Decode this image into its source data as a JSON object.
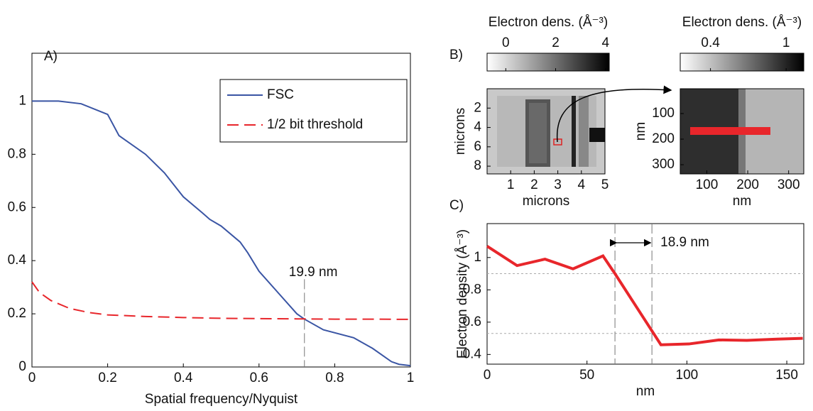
{
  "chart_data": [
    {
      "type": "line",
      "panel_label": "A)",
      "xlabel": "Spatial frequency/Nyquist",
      "xlim": [
        0,
        1
      ],
      "ylim": [
        0,
        1.18
      ],
      "xticks": [
        0,
        0.2,
        0.4,
        0.6,
        0.8,
        1
      ],
      "yticks": [
        0,
        0.2,
        0.4,
        0.6,
        0.8,
        1
      ],
      "legend": "upper right",
      "series": [
        {
          "name": "FSC",
          "color": "#3a55a4",
          "dash": false,
          "x": [
            0,
            0.07,
            0.13,
            0.2,
            0.23,
            0.3,
            0.35,
            0.4,
            0.45,
            0.47,
            0.5,
            0.55,
            0.57,
            0.6,
            0.65,
            0.7,
            0.72,
            0.77,
            0.85,
            0.9,
            0.95,
            0.97,
            1
          ],
          "values": [
            1,
            1,
            0.99,
            0.95,
            0.87,
            0.8,
            0.73,
            0.64,
            0.58,
            0.555,
            0.53,
            0.47,
            0.43,
            0.36,
            0.28,
            0.2,
            0.18,
            0.14,
            0.11,
            0.07,
            0.02,
            0.01,
            0.005
          ]
        },
        {
          "name": "1/2 bit threshold",
          "color": "#e8262b",
          "dash": true,
          "x": [
            0,
            0.02,
            0.05,
            0.1,
            0.15,
            0.2,
            0.3,
            0.4,
            0.5,
            0.6,
            0.7,
            0.8,
            0.9,
            1
          ],
          "values": [
            0.32,
            0.28,
            0.25,
            0.22,
            0.205,
            0.196,
            0.19,
            0.186,
            0.183,
            0.182,
            0.181,
            0.18,
            0.18,
            0.179
          ]
        }
      ],
      "vlines": [
        0.72
      ],
      "annotations": [
        "19.9 nm"
      ]
    },
    {
      "type": "image",
      "panel_label": "B)",
      "xlabel": "microns",
      "ylabel": "microns",
      "xlim": [
        0,
        5
      ],
      "ylim": [
        8.8,
        0
      ],
      "xticks": [
        1,
        2,
        3,
        4,
        5
      ],
      "yticks": [
        2,
        4,
        6,
        8
      ],
      "colorbar_label": "Electron dens. (Å⁻³)",
      "clim": [
        -0.75,
        4.15
      ],
      "cticks": [
        0,
        2,
        4
      ]
    },
    {
      "type": "image",
      "xlabel": "nm",
      "ylabel": "nm",
      "xlim": [
        35,
        337
      ],
      "ylim": [
        336,
        3
      ],
      "xticks": [
        100,
        200,
        300
      ],
      "yticks": [
        100,
        200,
        300
      ],
      "colorbar_label": "Electron dens. (Å⁻³)",
      "clim": [
        0.16,
        1.14
      ],
      "cticks": [
        0.4,
        1
      ]
    },
    {
      "type": "line",
      "panel_label": "C)",
      "xlabel": "nm",
      "ylabel": "Electron density (Å⁻³)",
      "xlim": [
        0,
        158.5
      ],
      "ylim": [
        0.34,
        1.21
      ],
      "xticks": [
        0,
        50,
        100,
        150
      ],
      "yticks": [
        0.4,
        0.6,
        0.8,
        1
      ],
      "series": [
        {
          "color": "#e8262b",
          "dash": false,
          "x": [
            0,
            15,
            29,
            43,
            58,
            64,
            87,
            101,
            116,
            130,
            145,
            158
          ],
          "values": [
            1.07,
            0.95,
            0.99,
            0.93,
            1.01,
            0.9,
            0.46,
            0.465,
            0.49,
            0.487,
            0.495,
            0.5
          ]
        }
      ],
      "vlines": [
        64,
        82.5
      ],
      "hlines": [
        0.9,
        0.53
      ],
      "annotations": [
        "18.9 nm"
      ]
    }
  ]
}
